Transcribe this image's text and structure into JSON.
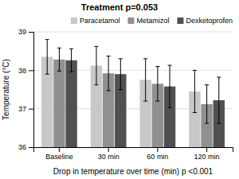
{
  "chart_data": {
    "type": "bar",
    "title": "Treatment p=0.053",
    "xlabel": "Drop in temperature over time (min) p <0.001",
    "ylabel": "Temperature (°C)",
    "categories": [
      "Baseline",
      "30 min",
      "60 min",
      "120 min"
    ],
    "series": [
      {
        "name": "Paracetamol",
        "color": "#c8c8c8",
        "values": [
          38.35,
          38.12,
          37.75,
          37.45
        ],
        "errors": [
          0.45,
          0.5,
          0.55,
          0.55
        ]
      },
      {
        "name": "Metamizol",
        "color": "#909090",
        "values": [
          38.28,
          37.92,
          37.65,
          37.12
        ],
        "errors": [
          0.3,
          0.45,
          0.45,
          0.5
        ]
      },
      {
        "name": "Dexketoprofen",
        "color": "#505050",
        "values": [
          38.26,
          37.9,
          37.58,
          37.22
        ],
        "errors": [
          0.3,
          0.4,
          0.55,
          0.6
        ]
      }
    ],
    "ylim": [
      36,
      39
    ],
    "yticks": [
      36,
      37,
      38,
      39
    ],
    "grid": true,
    "legend": "top"
  }
}
